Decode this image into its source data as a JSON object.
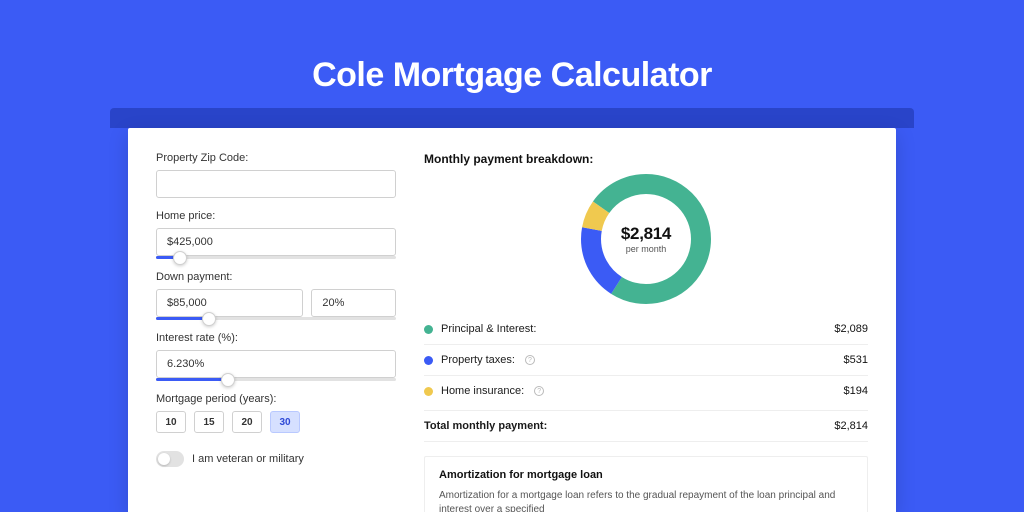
{
  "page": {
    "title": "Cole Mortgage Calculator",
    "bg_color": "#3b5bf5",
    "accent_bar_color": "#2944c9",
    "card_bg": "#ffffff"
  },
  "form": {
    "zip": {
      "label": "Property Zip Code:",
      "value": ""
    },
    "home_price": {
      "label": "Home price:",
      "value": "$425,000",
      "slider_pct": 10
    },
    "down_payment": {
      "label": "Down payment:",
      "amount": "$85,000",
      "percent": "20%",
      "slider_pct": 22
    },
    "interest_rate": {
      "label": "Interest rate (%):",
      "value": "6.230%",
      "slider_pct": 30
    },
    "period": {
      "label": "Mortgage period (years):",
      "options": [
        "10",
        "15",
        "20",
        "30"
      ],
      "selected": "30"
    },
    "veteran": {
      "label": "I am veteran or military",
      "value": false
    }
  },
  "breakdown": {
    "title": "Monthly payment breakdown:",
    "center_amount": "$2,814",
    "center_sub": "per month",
    "donut": {
      "segments": [
        {
          "key": "pi",
          "label": "Principal & Interest:",
          "value": "$2,089",
          "num": 2089,
          "color": "#44b392"
        },
        {
          "key": "tax",
          "label": "Property taxes:",
          "value": "$531",
          "num": 531,
          "color": "#3b5bf5",
          "info": true
        },
        {
          "key": "ins",
          "label": "Home insurance:",
          "value": "$194",
          "num": 194,
          "color": "#f0c94f",
          "info": true
        }
      ],
      "thickness": 20,
      "radius": 65,
      "rotation_start_deg": -55
    },
    "total": {
      "label": "Total monthly payment:",
      "value": "$2,814"
    }
  },
  "amortization": {
    "title": "Amortization for mortgage loan",
    "text": "Amortization for a mortgage loan refers to the gradual repayment of the loan principal and interest over a specified"
  }
}
